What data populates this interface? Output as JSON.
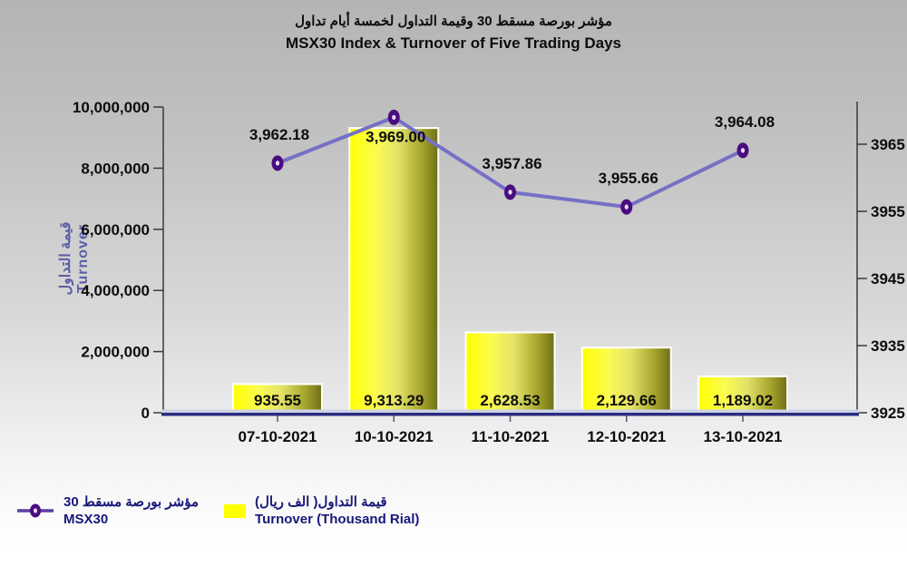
{
  "title": {
    "ar": "مؤشر بورصة مسقط 30 وقيمة التداول لخمسة أيام تداول",
    "en": "MSX30 Index & Turnover of Five Trading Days"
  },
  "chart_data": {
    "type": "combo-bar-line",
    "categories": [
      "07-10-2021",
      "10-10-2021",
      "11-10-2021",
      "12-10-2021",
      "13-10-2021"
    ],
    "series": [
      {
        "name": "Turnover (Thousand Rial)",
        "type": "bar",
        "axis": "left",
        "unit_multiplier": 1000,
        "values": [
          935.55,
          9313.29,
          2628.53,
          2129.66,
          1189.02
        ],
        "labels": [
          "935.55",
          "9,313.29",
          "2,628.53",
          "2,129.66",
          "1,189.02"
        ]
      },
      {
        "name": "MSX30",
        "type": "line",
        "axis": "right",
        "values": [
          3962.18,
          3969.0,
          3957.86,
          3955.66,
          3964.08
        ],
        "labels": [
          "3,962.18",
          "3,969.00",
          "3,957.86",
          "3,955.66",
          "3,964.08"
        ],
        "label_positions": [
          "above",
          "below",
          "above",
          "above",
          "above"
        ]
      }
    ],
    "left_axis": {
      "min": 0,
      "max": 10000000,
      "tick_labels": [
        "0",
        "2,000,000",
        "4,000,000",
        "6,000,000",
        "8,000,000",
        "10,000,000"
      ],
      "title_ar": "قيمة التداول",
      "title_en": "Turnover"
    },
    "right_axis": {
      "min": 3925,
      "tick_step": 10,
      "tick_labels": [
        "3925",
        "3935",
        "3945",
        "3955",
        "3965"
      ]
    }
  },
  "legend": {
    "items": [
      {
        "label_ar": "مؤشر بورصة مسقط 30",
        "label_en": "MSX30",
        "marker": "line-marker-icon"
      },
      {
        "label_ar": "قيمة التداول( الف ريال)",
        "label_en": "Turnover (Thousand Rial)",
        "marker": "bar-swatch"
      }
    ]
  },
  "colors": {
    "bar_yellow": "#ffff00",
    "bar_dark": "#6f6f17",
    "line_purple": "#7670c5",
    "marker_purple": "#4a0d80",
    "marker_center": "#e6ddf2",
    "axis_navy": "#2b2b80",
    "axis_gray": "#3a3a3a",
    "legend_navy": "#18187a",
    "ytitle_purple": "#5d5da6",
    "label_black": "#0d0d0d"
  }
}
